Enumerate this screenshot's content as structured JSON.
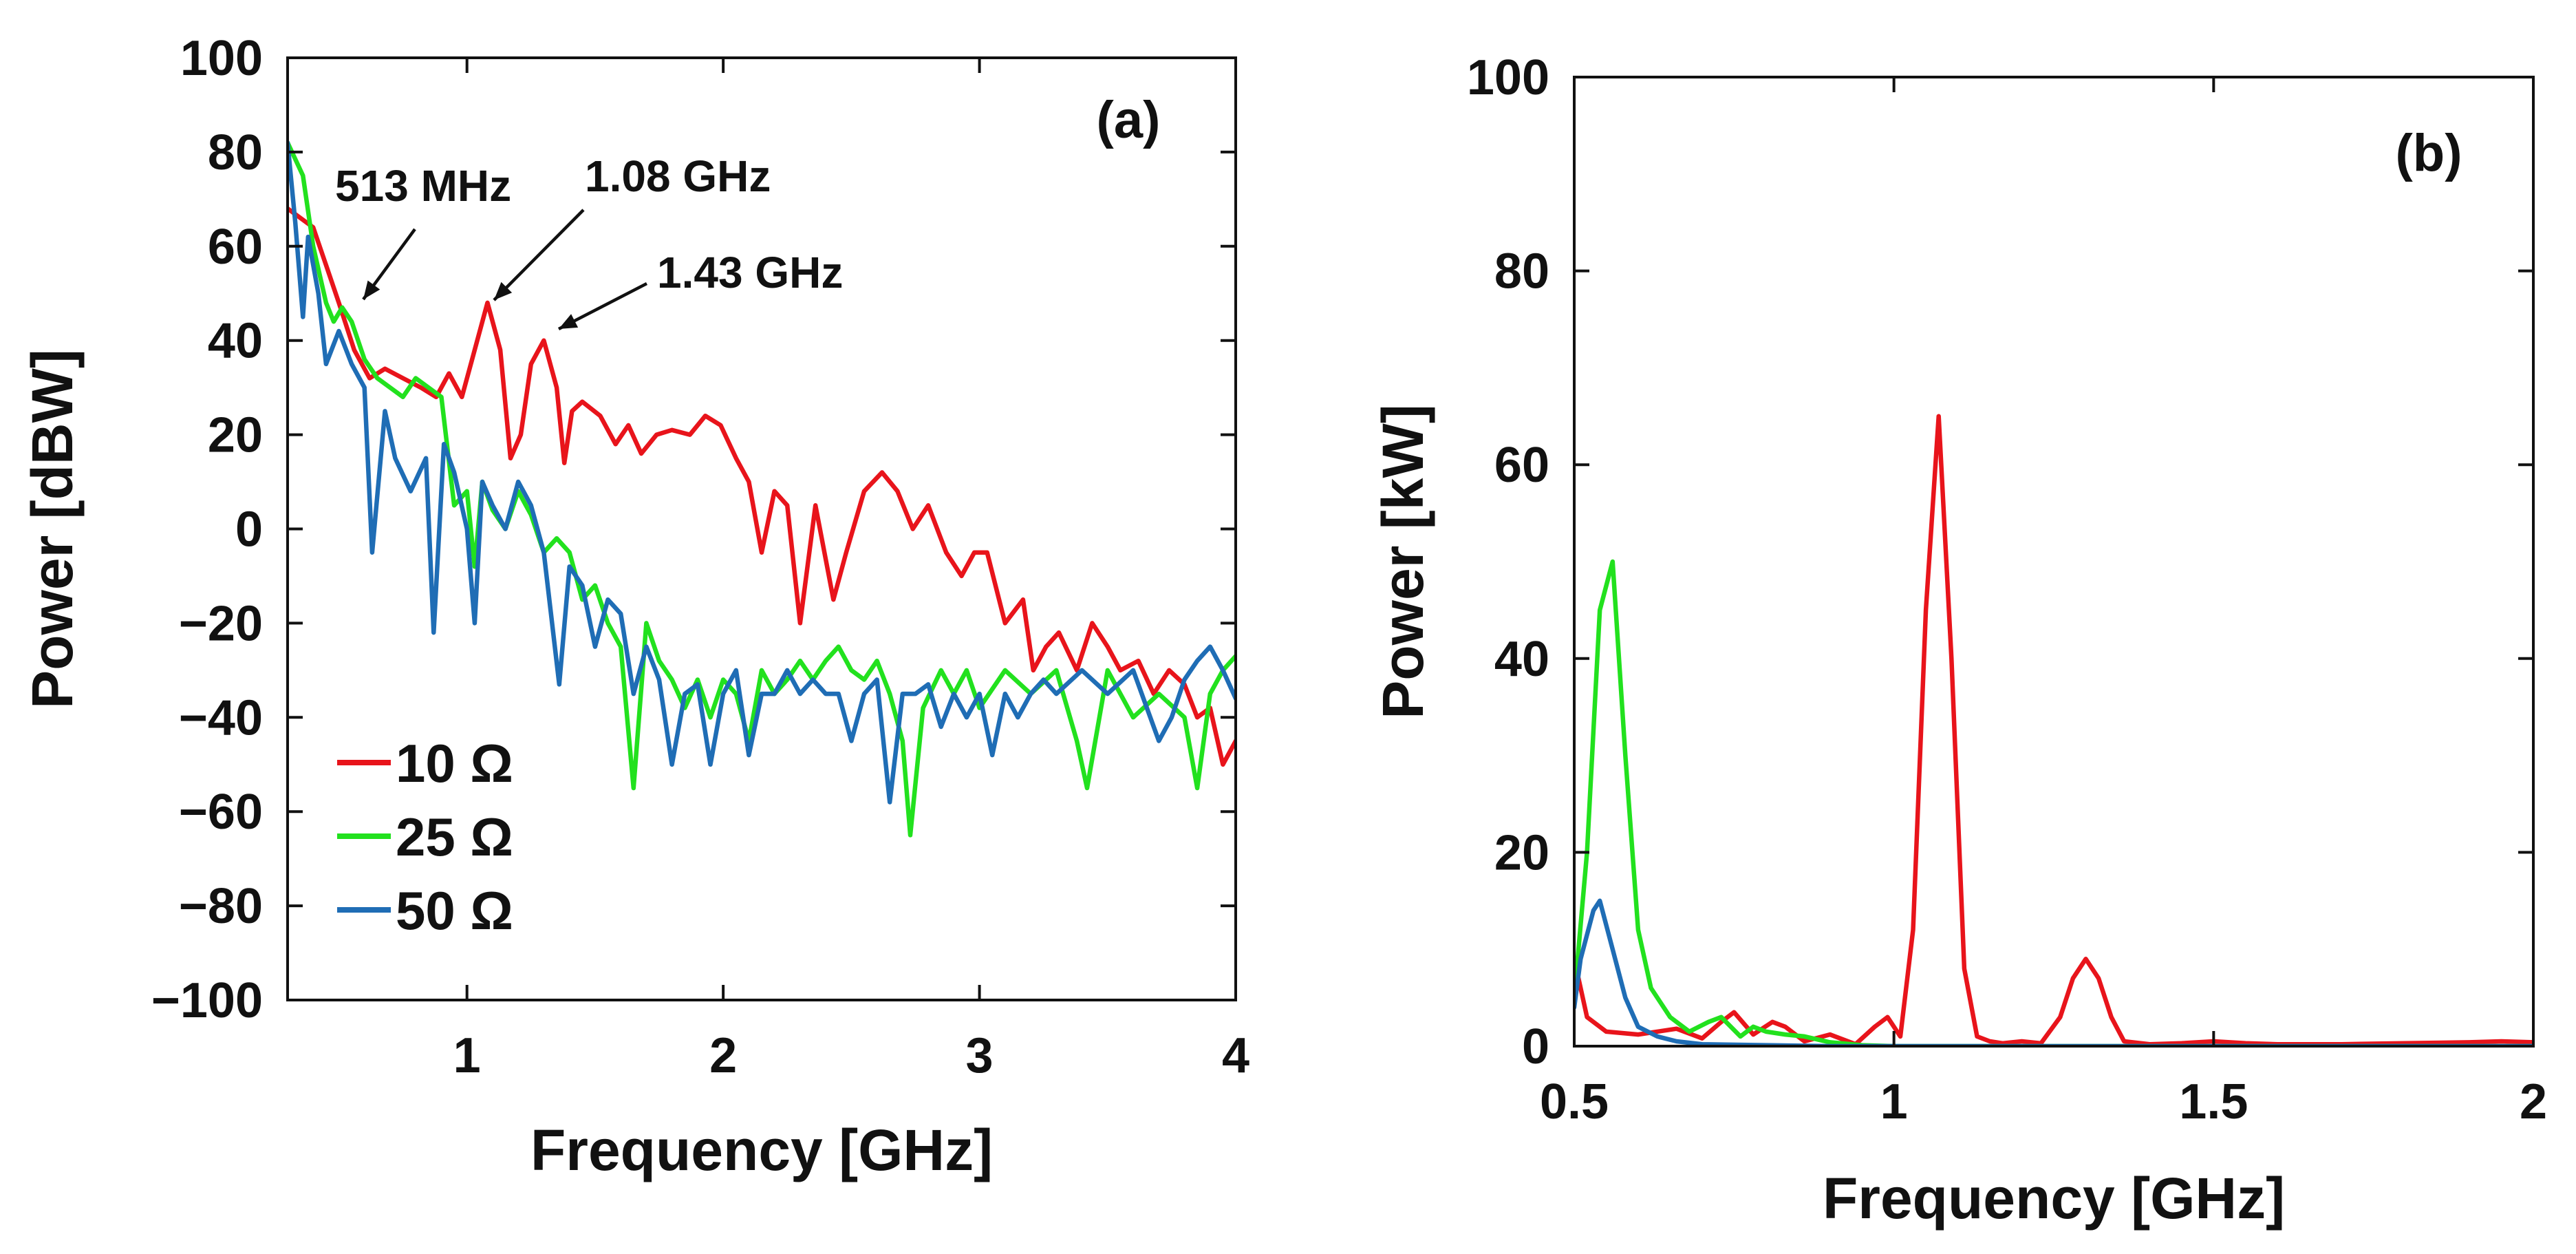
{
  "chart_data": [
    {
      "panel": "(a)",
      "type": "line",
      "xlabel": "Frequency [GHz]",
      "ylabel": "Power [dBW]",
      "xlim": [
        0.3,
        4
      ],
      "ylim": [
        -100,
        100
      ],
      "xticks": [
        1,
        2,
        3,
        4
      ],
      "xtick_labels": [
        "1",
        "2",
        "3",
        "4"
      ],
      "yticks": [
        100,
        80,
        60,
        40,
        20,
        0,
        -20,
        -40,
        -60,
        -80,
        -100
      ],
      "ytick_labels": [
        "100",
        "80",
        "60",
        "40",
        "20",
        "0",
        "−20",
        "−40",
        "−60",
        "−80",
        "−100"
      ],
      "legend_position": "bottom-left",
      "annotations": [
        {
          "text": "513 MHz",
          "x": 0.513,
          "y": 47
        },
        {
          "text": "1.08 GHz",
          "x": 1.08,
          "y": 48
        },
        {
          "text": "1.43 GHz",
          "x": 1.37,
          "y": 42
        }
      ],
      "series": [
        {
          "name": "10 Ω",
          "color": "#e8141b",
          "x": [
            0.3,
            0.4,
            0.45,
            0.5,
            0.56,
            0.62,
            0.68,
            0.75,
            0.82,
            0.88,
            0.93,
            0.98,
            1.02,
            1.08,
            1.13,
            1.17,
            1.21,
            1.25,
            1.3,
            1.35,
            1.38,
            1.41,
            1.45,
            1.52,
            1.58,
            1.63,
            1.68,
            1.74,
            1.8,
            1.87,
            1.93,
            1.99,
            2.05,
            2.1,
            2.15,
            2.2,
            2.25,
            2.3,
            2.36,
            2.43,
            2.48,
            2.55,
            2.62,
            2.68,
            2.74,
            2.8,
            2.87,
            2.93,
            2.98,
            3.03,
            3.1,
            3.17,
            3.21,
            3.26,
            3.31,
            3.38,
            3.44,
            3.5,
            3.55,
            3.62,
            3.68,
            3.74,
            3.8,
            3.85,
            3.9,
            3.95,
            4.0
          ],
          "y": [
            68,
            64,
            56,
            48,
            38,
            32,
            34,
            32,
            30,
            28,
            33,
            28,
            36,
            48,
            38,
            15,
            20,
            35,
            40,
            30,
            14,
            25,
            27,
            24,
            18,
            22,
            16,
            20,
            21,
            20,
            24,
            22,
            15,
            10,
            -5,
            8,
            5,
            -20,
            5,
            -15,
            -5,
            8,
            12,
            8,
            0,
            5,
            -5,
            -10,
            -5,
            -5,
            -20,
            -15,
            -30,
            -25,
            -22,
            -30,
            -20,
            -25,
            -30,
            -28,
            -35,
            -30,
            -33,
            -40,
            -38,
            -50,
            -45
          ]
        },
        {
          "name": "25 Ω",
          "color": "#22e11e",
          "x": [
            0.3,
            0.36,
            0.4,
            0.45,
            0.48,
            0.513,
            0.55,
            0.6,
            0.65,
            0.7,
            0.75,
            0.8,
            0.85,
            0.9,
            0.95,
            1.0,
            1.03,
            1.06,
            1.1,
            1.15,
            1.2,
            1.25,
            1.3,
            1.35,
            1.4,
            1.45,
            1.5,
            1.55,
            1.6,
            1.65,
            1.7,
            1.75,
            1.8,
            1.85,
            1.9,
            1.95,
            2.0,
            2.05,
            2.1,
            2.15,
            2.2,
            2.25,
            2.3,
            2.35,
            2.4,
            2.45,
            2.5,
            2.55,
            2.6,
            2.65,
            2.7,
            2.73,
            2.78,
            2.85,
            2.9,
            2.95,
            3.0,
            3.1,
            3.2,
            3.3,
            3.38,
            3.42,
            3.5,
            3.6,
            3.7,
            3.8,
            3.85,
            3.9,
            3.95,
            4.0
          ],
          "y": [
            82,
            75,
            60,
            48,
            44,
            47,
            44,
            36,
            32,
            30,
            28,
            32,
            30,
            28,
            5,
            8,
            -8,
            10,
            4,
            0,
            8,
            3,
            -5,
            -2,
            -5,
            -15,
            -12,
            -20,
            -25,
            -55,
            -20,
            -28,
            -32,
            -38,
            -32,
            -40,
            -32,
            -35,
            -45,
            -30,
            -35,
            -32,
            -28,
            -32,
            -28,
            -25,
            -30,
            -32,
            -28,
            -35,
            -45,
            -65,
            -38,
            -30,
            -35,
            -30,
            -38,
            -30,
            -35,
            -30,
            -45,
            -55,
            -30,
            -40,
            -35,
            -40,
            -55,
            -35,
            -30,
            -27
          ]
        },
        {
          "name": "50 Ω",
          "color": "#1f6db5",
          "x": [
            0.3,
            0.33,
            0.36,
            0.38,
            0.42,
            0.45,
            0.5,
            0.55,
            0.6,
            0.63,
            0.68,
            0.72,
            0.78,
            0.84,
            0.87,
            0.91,
            0.95,
            1.0,
            1.03,
            1.06,
            1.1,
            1.15,
            1.2,
            1.25,
            1.3,
            1.36,
            1.4,
            1.45,
            1.5,
            1.55,
            1.6,
            1.65,
            1.7,
            1.75,
            1.8,
            1.85,
            1.9,
            1.95,
            2.0,
            2.05,
            2.1,
            2.15,
            2.2,
            2.25,
            2.3,
            2.35,
            2.4,
            2.45,
            2.5,
            2.55,
            2.6,
            2.65,
            2.7,
            2.75,
            2.8,
            2.85,
            2.9,
            2.95,
            3.0,
            3.05,
            3.1,
            3.15,
            3.2,
            3.25,
            3.3,
            3.4,
            3.5,
            3.6,
            3.7,
            3.75,
            3.8,
            3.85,
            3.9,
            3.95,
            4.0
          ],
          "y": [
            82,
            65,
            45,
            62,
            50,
            35,
            42,
            35,
            30,
            -5,
            25,
            15,
            8,
            15,
            -22,
            18,
            12,
            0,
            -20,
            10,
            5,
            0,
            10,
            5,
            -5,
            -33,
            -8,
            -12,
            -25,
            -15,
            -18,
            -35,
            -25,
            -32,
            -50,
            -35,
            -33,
            -50,
            -35,
            -30,
            -48,
            -35,
            -35,
            -30,
            -35,
            -32,
            -35,
            -35,
            -45,
            -35,
            -32,
            -58,
            -35,
            -35,
            -33,
            -42,
            -35,
            -40,
            -35,
            -48,
            -35,
            -40,
            -35,
            -32,
            -35,
            -30,
            -35,
            -30,
            -45,
            -40,
            -32,
            -28,
            -25,
            -30,
            -36
          ]
        }
      ]
    },
    {
      "panel": "(b)",
      "type": "line",
      "xlabel": "Frequency [GHz]",
      "ylabel": "Power [kW]",
      "xlim": [
        0.5,
        2
      ],
      "ylim": [
        0,
        100
      ],
      "xticks": [
        0.5,
        1,
        1.5,
        2
      ],
      "xtick_labels": [
        "0.5",
        "1",
        "1.5",
        "2"
      ],
      "yticks": [
        0,
        20,
        40,
        60,
        80,
        100
      ],
      "ytick_labels": [
        "0",
        "20",
        "40",
        "60",
        "80",
        "100"
      ],
      "series": [
        {
          "name": "10 Ω",
          "color": "#e8141b",
          "x": [
            0.5,
            0.52,
            0.55,
            0.6,
            0.66,
            0.7,
            0.73,
            0.75,
            0.78,
            0.81,
            0.83,
            0.86,
            0.9,
            0.94,
            0.97,
            0.99,
            1.01,
            1.03,
            1.05,
            1.07,
            1.09,
            1.11,
            1.13,
            1.15,
            1.17,
            1.2,
            1.23,
            1.26,
            1.28,
            1.3,
            1.32,
            1.34,
            1.36,
            1.4,
            1.45,
            1.5,
            1.55,
            1.6,
            1.7,
            1.8,
            1.9,
            1.95,
            2.0
          ],
          "y": [
            9,
            3,
            1.5,
            1.2,
            1.8,
            0.8,
            2.5,
            3.5,
            1.2,
            2.5,
            2.0,
            0.5,
            1.2,
            0.2,
            2.0,
            3.0,
            1.0,
            12,
            45,
            65,
            40,
            8,
            1,
            0.5,
            0.3,
            0.5,
            0.3,
            3,
            7,
            9,
            7,
            3,
            0.5,
            0.2,
            0.3,
            0.5,
            0.3,
            0.2,
            0.2,
            0.3,
            0.4,
            0.5,
            0.4
          ]
        },
        {
          "name": "25 Ω",
          "color": "#22e11e",
          "x": [
            0.5,
            0.52,
            0.54,
            0.56,
            0.58,
            0.6,
            0.62,
            0.65,
            0.68,
            0.71,
            0.73,
            0.76,
            0.78,
            0.8,
            0.83,
            0.86,
            0.9,
            0.95,
            1.0,
            1.2,
            1.5,
            2.0
          ],
          "y": [
            5,
            20,
            45,
            50,
            30,
            12,
            6,
            3,
            1.5,
            2.5,
            3,
            1,
            2,
            1.5,
            1.2,
            1,
            0.4,
            0.1,
            0,
            0,
            0,
            0
          ]
        },
        {
          "name": "50 Ω",
          "color": "#1f6db5",
          "x": [
            0.5,
            0.51,
            0.53,
            0.54,
            0.56,
            0.58,
            0.6,
            0.63,
            0.66,
            0.7,
            0.8,
            0.9,
            1.0,
            1.5,
            2.0
          ],
          "y": [
            4,
            9,
            14,
            15,
            10,
            5,
            2,
            1,
            0.5,
            0.2,
            0.1,
            0,
            0,
            0,
            0
          ]
        }
      ]
    }
  ]
}
